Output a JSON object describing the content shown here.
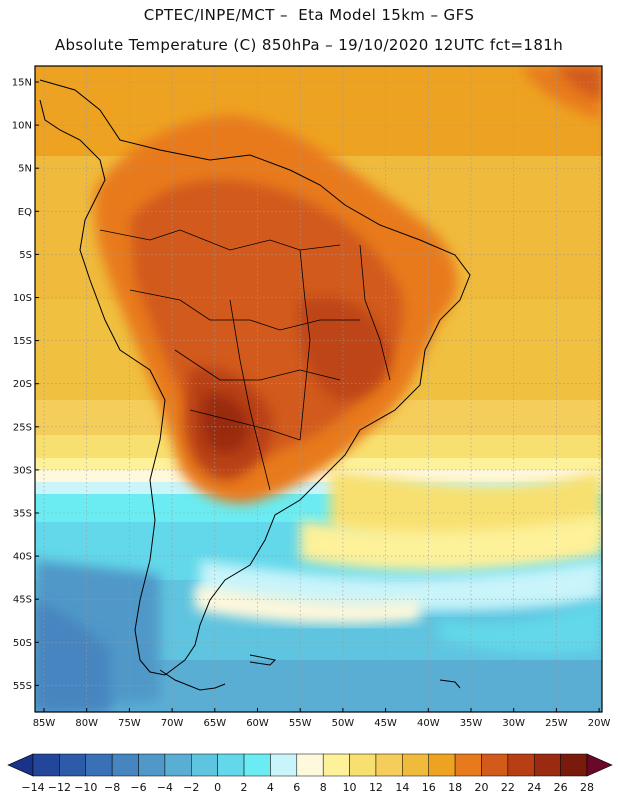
{
  "header": {
    "line1": "CPTEC/INPE/MCT –  Eta Model 15km – GFS",
    "line2": "Absolute Temperature (C) 850hPa – 19/10/2020 12UTC fct=181h"
  },
  "axes": {
    "lat_labels": [
      "15N",
      "10N",
      "5N",
      "EQ",
      "5S",
      "10S",
      "15S",
      "20S",
      "25S",
      "30S",
      "35S",
      "40S",
      "45S",
      "50S",
      "55S"
    ],
    "lon_labels": [
      "85W",
      "80W",
      "75W",
      "70W",
      "65W",
      "60W",
      "55W",
      "50W",
      "45W",
      "40W",
      "35W",
      "30W",
      "25W",
      "20W"
    ]
  },
  "colorbar": {
    "labels": [
      "-14",
      "-12",
      "-10",
      "-8",
      "-6",
      "-4",
      "-2",
      "0",
      "2",
      "4",
      "6",
      "8",
      "10",
      "12",
      "14",
      "16",
      "18",
      "20",
      "22",
      "24",
      "26",
      "28"
    ],
    "colors": [
      "#22479a",
      "#2d5ba8",
      "#3a70b6",
      "#4685c0",
      "#4f98c8",
      "#5aaed4",
      "#5fc4e0",
      "#62d8ea",
      "#6aecf2",
      "#c8f4fa",
      "#fef8dc",
      "#fdf19a",
      "#f8e070",
      "#f5cd5a",
      "#f0ba3c",
      "#eea221",
      "#e87a1e",
      "#d25a1a",
      "#b83f14",
      "#9a2a10",
      "#7a1a0c"
    ],
    "under_color": "#1a3288",
    "over_color": "#6a0828"
  }
}
